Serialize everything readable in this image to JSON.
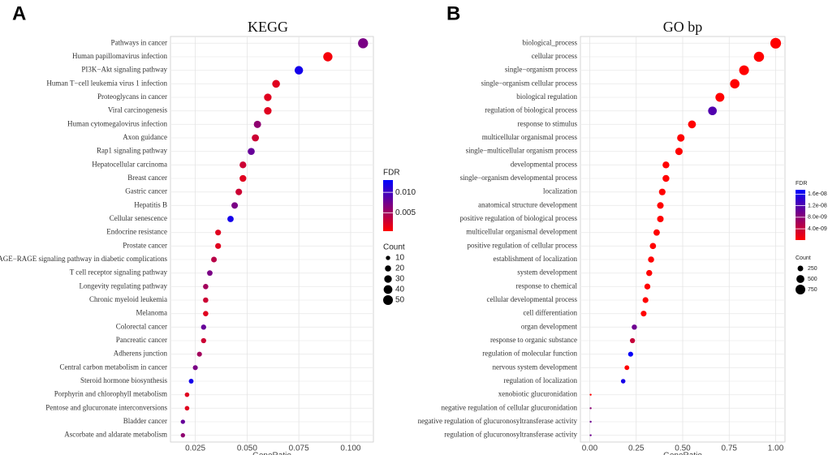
{
  "chart_data": [
    {
      "type": "dot",
      "panel_label": "A",
      "title": "KEGG",
      "x_label": "GeneRatio",
      "categories": [
        "Pathways in cancer",
        "Human papillomavirus infection",
        "PI3K−Akt signaling pathway",
        "Human T−cell leukemia virus 1 infection",
        "Proteoglycans in cancer",
        "Viral carcinogenesis",
        "Human cytomegalovirus infection",
        "Axon guidance",
        "Rap1 signaling pathway",
        "Hepatocellular carcinoma",
        "Breast cancer",
        "Gastric cancer",
        "Hepatitis B",
        "Cellular senescence",
        "Endocrine resistance",
        "Prostate cancer",
        "AGE−RAGE signaling pathway in diabetic complications",
        "T cell receptor signaling pathway",
        "Longevity regulating pathway",
        "Chronic myeloid leukemia",
        "Melanoma",
        "Colorectal cancer",
        "Pancreatic cancer",
        "Adherens junction",
        "Central carbon metabolism in cancer",
        "Steroid hormone biosynthesis",
        "Porphyrin and chlorophyll metabolism",
        "Pentose and glucuronate interconversions",
        "Bladder cancer",
        "Ascorbate and aldarate metabolism"
      ],
      "values": [
        0.106,
        0.089,
        0.075,
        0.064,
        0.06,
        0.06,
        0.055,
        0.054,
        0.052,
        0.048,
        0.048,
        0.046,
        0.044,
        0.042,
        0.036,
        0.036,
        0.034,
        0.032,
        0.03,
        0.03,
        0.03,
        0.029,
        0.029,
        0.027,
        0.025,
        0.023,
        0.021,
        0.021,
        0.019,
        0.019
      ],
      "sizes": [
        53,
        45,
        38,
        32,
        30,
        30,
        28,
        27,
        26,
        24,
        24,
        23,
        22,
        21,
        18,
        18,
        17,
        16,
        15,
        15,
        15,
        14,
        14,
        13,
        13,
        12,
        11,
        11,
        10,
        10
      ],
      "fdr": [
        0.007,
        0.001,
        0.012,
        0.002,
        0.002,
        0.002,
        0.006,
        0.003,
        0.008,
        0.003,
        0.002,
        0.003,
        0.007,
        0.012,
        0.002,
        0.002,
        0.004,
        0.007,
        0.005,
        0.003,
        0.002,
        0.008,
        0.003,
        0.005,
        0.007,
        0.012,
        0.002,
        0.002,
        0.008,
        0.006
      ],
      "xlim": [
        0.013,
        0.111
      ],
      "xticks": [
        0.025,
        {
          "value": 0.05,
          "label": "0.050"
        },
        0.075,
        {
          "value": 0.1,
          "label": "0.100"
        }
      ],
      "grid": true,
      "color_legend_title": "FDR",
      "color_lim": [
        0.0005,
        0.013
      ],
      "color_low": "#ff0000",
      "color_high": "#0000ff",
      "color_ticks": [
        {
          "value": 0.005,
          "label": "0.005"
        },
        {
          "value": 0.01,
          "label": "0.010"
        }
      ],
      "size_legend_title": "Count",
      "size_ticks": [
        10,
        20,
        30,
        40,
        50
      ]
    },
    {
      "type": "dot",
      "panel_label": "B",
      "title": "GO bp",
      "x_label": "GeneRatio",
      "categories": [
        "biological_process",
        "cellular process",
        "single−organism process",
        "single−organism cellular process",
        "biological regulation",
        "regulation of biological process",
        "response to stimulus",
        "multicellular organismal process",
        "single−multicellular organism process",
        "developmental process",
        "single−organism developmental process",
        "localization",
        "anatomical structure development",
        "positive regulation of biological process",
        "multicellular organismal development",
        "positive regulation of cellular process",
        "establishment of localization",
        "system development",
        "response to chemical",
        "cellular developmental process",
        "cell differentiation",
        "organ development",
        "response to organic substance",
        "regulation of molecular function",
        "nervous system development",
        "regulation of localization",
        "xenobiotic glucuronidation",
        "negative regulation of cellular glucuronidation",
        "negative regulation of glucuronosyltransferase activity",
        "regulation of glucuronosyltransferase activity"
      ],
      "values": [
        1.0,
        0.91,
        0.83,
        0.78,
        0.7,
        0.66,
        0.55,
        0.49,
        0.48,
        0.41,
        0.41,
        0.39,
        0.38,
        0.38,
        0.36,
        0.34,
        0.33,
        0.32,
        0.31,
        0.3,
        0.29,
        0.24,
        0.23,
        0.22,
        0.2,
        0.18,
        0.005,
        0.005,
        0.005,
        0.005
      ],
      "sizes": [
        900,
        820,
        750,
        700,
        630,
        595,
        495,
        440,
        430,
        370,
        370,
        350,
        340,
        340,
        325,
        305,
        295,
        290,
        280,
        270,
        260,
        215,
        205,
        200,
        180,
        160,
        5,
        5,
        5,
        5
      ],
      "fdr": [
        1e-10,
        1e-10,
        1e-10,
        1e-10,
        1e-10,
        1.2e-08,
        1e-10,
        1e-10,
        1e-10,
        1e-10,
        1e-10,
        1e-10,
        1e-10,
        1e-10,
        1e-10,
        1e-10,
        1e-10,
        1e-10,
        1e-10,
        1e-10,
        1e-10,
        1e-08,
        4e-09,
        1.7e-08,
        1e-10,
        1.6e-08,
        1e-10,
        8e-09,
        1e-08,
        1e-08
      ],
      "xlim": [
        -0.05,
        1.05
      ],
      "xticks": [
        {
          "value": 0,
          "label": "0.00"
        },
        0.25,
        {
          "value": 0.5,
          "label": "0.50"
        },
        0.75,
        {
          "value": 1,
          "label": "1.00"
        }
      ],
      "grid": true,
      "color_legend_title": "FDR",
      "color_lim": [
        1e-10,
        1.75e-08
      ],
      "color_low": "#ff0000",
      "color_high": "#0000ff",
      "color_ticks": [
        {
          "value": 4e-09,
          "label": "4.0e-09"
        },
        {
          "value": 8e-09,
          "label": "8.0e-09"
        },
        {
          "value": 1.2e-08,
          "label": "1.2e-08"
        },
        {
          "value": 1.6e-08,
          "label": "1.6e-08"
        }
      ],
      "size_legend_title": "Count",
      "size_ticks": [
        250,
        500,
        750
      ]
    }
  ]
}
